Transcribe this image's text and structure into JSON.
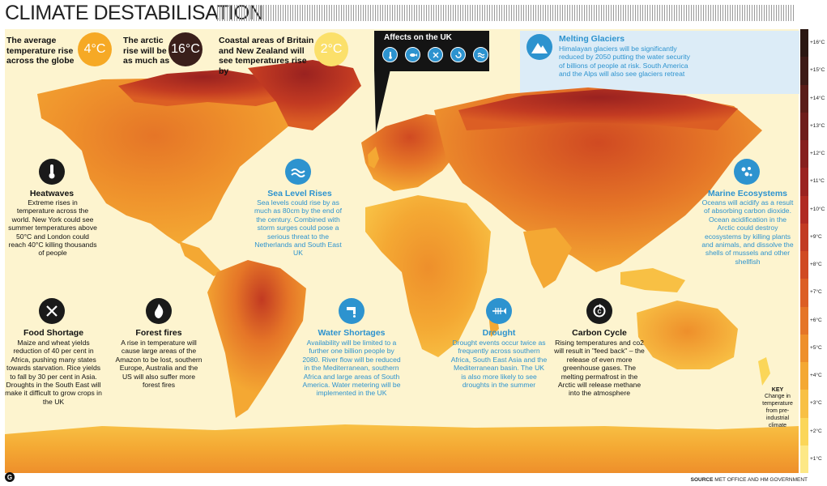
{
  "title": "CLIMATE DESTABILISATION",
  "stats": [
    {
      "text": "The average temperature rise across the globe",
      "value": "4°C",
      "color": "#f6a925",
      "text_color": "#ffffff"
    },
    {
      "text": "The arctic rise will be as much as",
      "value": "16°C",
      "color": "#3a1f1b",
      "text_color": "#ffffff"
    },
    {
      "text": "Coastal areas of Britain and New Zealand will see temperatures rise by",
      "value": "2°C",
      "color": "#fbe06a",
      "text_color": "#ffffff"
    }
  ],
  "uk": {
    "title": "Affects on the UK",
    "icons": [
      "thermometer-icon",
      "fish-icon",
      "cutlery-icon",
      "carbon-cycle-icon",
      "wave-icon"
    ]
  },
  "topics": {
    "glaciers": {
      "title": "Melting Glaciers",
      "body": "Himalayan glaciers will be significantly reduced by 2050 putting the water security of billions of people at risk. South America and the Alps will also see glaciers retreat",
      "icon": "mountain-icon"
    },
    "heatwaves": {
      "title": "Heatwaves",
      "body": "Extreme rises in temperature across the world. New York could see summer temperatures above 50°C and London could reach 40°C killing thousands of people",
      "icon": "thermometer-icon"
    },
    "sea_level": {
      "title": "Sea Level Rises",
      "body": "Sea levels could rise by as much as 80cm by the end of the century. Combined with storm surges could pose a serious threat to the Netherlands and South East UK",
      "icon": "wave-icon"
    },
    "marine": {
      "title": "Marine Ecosystems",
      "body": "Oceans will acidify as a result of absorbing carbon dioxide. Ocean acidification in the Arctic could destroy ecosystems by killing plants and animals, and dissolve the shells of mussels and other shellfish",
      "icon": "bubbles-icon"
    },
    "food": {
      "title": "Food Shortage",
      "body": "Maize and wheat yields reduction of 40 per cent in Africa, pushing many states towards starvation. Rice yields to fall by 30 per cent in Asia. Droughts in the South East will make it difficult to grow crops in the UK",
      "icon": "cutlery-icon"
    },
    "fires": {
      "title": "Forest fires",
      "body": "A rise in temperature will cause large areas of the Amazon to be lost, southern Europe, Australia and the US will also suffer more forest fires",
      "icon": "fire-icon"
    },
    "water": {
      "title": "Water Shortages",
      "body": "Availability will be limited to a further one billion people by 2080. River flow will be reduced in the Mediterranean, southern Africa and large areas of South America. Water metering will be implemented in the UK",
      "icon": "tap-icon"
    },
    "drought": {
      "title": "Drought",
      "body": "Drought events occur twice as frequently across southern Africa, South East Asia and the Mediterranean basin. The UK is also more likely to see droughts in the summer",
      "icon": "fish-skeleton-icon"
    },
    "carbon": {
      "title": "Carbon Cycle",
      "body": "Rising temperatures and co2 will result in \"feed back\" – the release of even more greenhouse gases. The melting permafrost in the Arctic will release methane into the atmosphere",
      "icon": "carbon-cycle-icon"
    }
  },
  "legend": {
    "key_title": "KEY",
    "key_body": "Change in temperature from pre-industrial climate",
    "ticks": [
      "+16°C",
      "+15°C",
      "+14°C",
      "+13°C",
      "+12°C",
      "+11°C",
      "+10°C",
      "+9°C",
      "+8°C",
      "+7°C",
      "+6°C",
      "+5°C",
      "+4°C",
      "+3°C",
      "+2°C",
      "+1°C"
    ],
    "colors": [
      "#2a1712",
      "#3d1a16",
      "#5a1c18",
      "#6e1d1b",
      "#861f1e",
      "#9a2220",
      "#b02a22",
      "#c23a22",
      "#d04a22",
      "#dc5e24",
      "#e57527",
      "#ee8f2b",
      "#f4a833",
      "#f8c044",
      "#fbd659",
      "#fde886"
    ]
  },
  "source_label": "SOURCE",
  "source": "MET OFFICE AND HM GOVERNMENT",
  "publisher_mark": "G"
}
